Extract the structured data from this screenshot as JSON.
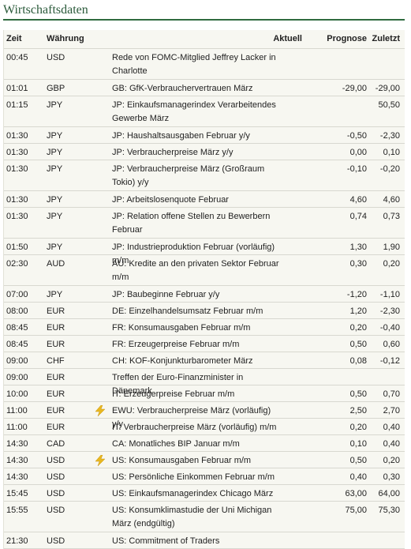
{
  "title": "Wirtschaftsdaten",
  "columns": {
    "time": "Zeit",
    "currency": "Währung",
    "actual": "Aktuell",
    "forecast": "Prognose",
    "previous": "Zuletzt"
  },
  "events": [
    {
      "time": "00:45",
      "currency": "USD",
      "event": "Rede von FOMC-Mitglied Jeffrey Lacker in Charlotte",
      "actual": "",
      "forecast": "",
      "previous": "",
      "icon": ""
    },
    {
      "time": "01:01",
      "currency": "GBP",
      "event": "GB: GfK-Verbrauchervertrauen März",
      "actual": "",
      "forecast": "-29,00",
      "previous": "-29,00",
      "icon": ""
    },
    {
      "time": "01:15",
      "currency": "JPY",
      "event": "JP: Einkaufsmanagerindex Verarbeitendes Gewerbe März",
      "actual": "",
      "forecast": "",
      "previous": "50,50",
      "icon": ""
    },
    {
      "time": "01:30",
      "currency": "JPY",
      "event": "JP: Haushaltsausgaben Februar y/y",
      "actual": "",
      "forecast": "-0,50",
      "previous": "-2,30",
      "icon": ""
    },
    {
      "time": "01:30",
      "currency": "JPY",
      "event": "JP: Verbraucherpreise März y/y",
      "actual": "",
      "forecast": "0,00",
      "previous": "0,10",
      "icon": ""
    },
    {
      "time": "01:30",
      "currency": "JPY",
      "event": "JP: Verbraucherpreise März (Großraum Tokio) y/y",
      "actual": "",
      "forecast": "-0,10",
      "previous": "-0,20",
      "icon": ""
    },
    {
      "time": "01:30",
      "currency": "JPY",
      "event": "JP: Arbeitslosenquote Februar",
      "actual": "",
      "forecast": "4,60",
      "previous": "4,60",
      "icon": ""
    },
    {
      "time": "01:30",
      "currency": "JPY",
      "event": "JP: Relation offene Stellen zu Bewerbern Februar",
      "actual": "",
      "forecast": "0,74",
      "previous": "0,73",
      "icon": ""
    },
    {
      "time": "01:50",
      "currency": "JPY",
      "event": "JP: Industrieproduktion Februar (vorläufig) m/m",
      "actual": "",
      "forecast": "1,30",
      "previous": "1,90",
      "icon": ""
    },
    {
      "time": "02:30",
      "currency": "AUD",
      "event": "AU: Kredite an den privaten Sektor Februar m/m",
      "actual": "",
      "forecast": "0,30",
      "previous": "0,20",
      "icon": ""
    },
    {
      "time": "07:00",
      "currency": "JPY",
      "event": "JP: Baubeginne Februar y/y",
      "actual": "",
      "forecast": "-1,20",
      "previous": "-1,10",
      "icon": ""
    },
    {
      "time": "08:00",
      "currency": "EUR",
      "event": "DE: Einzelhandelsumsatz Februar m/m",
      "actual": "",
      "forecast": "1,20",
      "previous": "-2,30",
      "icon": ""
    },
    {
      "time": "08:45",
      "currency": "EUR",
      "event": "FR: Konsumausgaben Februar m/m",
      "actual": "",
      "forecast": "0,20",
      "previous": "-0,40",
      "icon": ""
    },
    {
      "time": "08:45",
      "currency": "EUR",
      "event": "FR: Erzeugerpreise Februar m/m",
      "actual": "",
      "forecast": "0,50",
      "previous": "0,60",
      "icon": ""
    },
    {
      "time": "09:00",
      "currency": "CHF",
      "event": "CH: KOF-Konjunkturbarometer März",
      "actual": "",
      "forecast": "0,08",
      "previous": "-0,12",
      "icon": ""
    },
    {
      "time": "09:00",
      "currency": "EUR",
      "event": "Treffen der Euro-Finanzminister in Dänemark",
      "actual": "",
      "forecast": "",
      "previous": "",
      "icon": ""
    },
    {
      "time": "10:00",
      "currency": "EUR",
      "event": "IT: Erzeugerpreise Februar m/m",
      "actual": "",
      "forecast": "0,50",
      "previous": "0,70",
      "icon": ""
    },
    {
      "time": "11:00",
      "currency": "EUR",
      "event": "EWU: Verbraucherpreise März (vorläufig) y/y",
      "actual": "",
      "forecast": "2,50",
      "previous": "2,70",
      "icon": "flash-icon"
    },
    {
      "time": "11:00",
      "currency": "EUR",
      "event": "IT: Verbraucherpreise März (vorläufig) m/m",
      "actual": "",
      "forecast": "0,20",
      "previous": "0,40",
      "icon": ""
    },
    {
      "time": "14:30",
      "currency": "CAD",
      "event": "CA: Monatliches BIP Januar m/m",
      "actual": "",
      "forecast": "0,10",
      "previous": "0,40",
      "icon": ""
    },
    {
      "time": "14:30",
      "currency": "USD",
      "event": "US: Konsumausgaben Februar m/m",
      "actual": "",
      "forecast": "0,50",
      "previous": "0,20",
      "icon": "flash-icon"
    },
    {
      "time": "14:30",
      "currency": "USD",
      "event": "US: Persönliche Einkommen Februar m/m",
      "actual": "",
      "forecast": "0,40",
      "previous": "0,30",
      "icon": ""
    },
    {
      "time": "15:45",
      "currency": "USD",
      "event": "US: Einkaufsmanagerindex Chicago März",
      "actual": "",
      "forecast": "63,00",
      "previous": "64,00",
      "icon": ""
    },
    {
      "time": "15:55",
      "currency": "USD",
      "event": "US: Konsumklimastudie der Uni Michigan März (endgültig)",
      "actual": "",
      "forecast": "75,00",
      "previous": "75,30",
      "icon": ""
    },
    {
      "time": "21:30",
      "currency": "USD",
      "event": "US: Commitment of Traders",
      "actual": "",
      "forecast": "",
      "previous": "",
      "icon": ""
    }
  ],
  "colors": {
    "title": "#2a5a3a",
    "rule": "#2f6b3f",
    "table_bg": "#f7f7f1",
    "flash_icon": "#e8b820"
  }
}
